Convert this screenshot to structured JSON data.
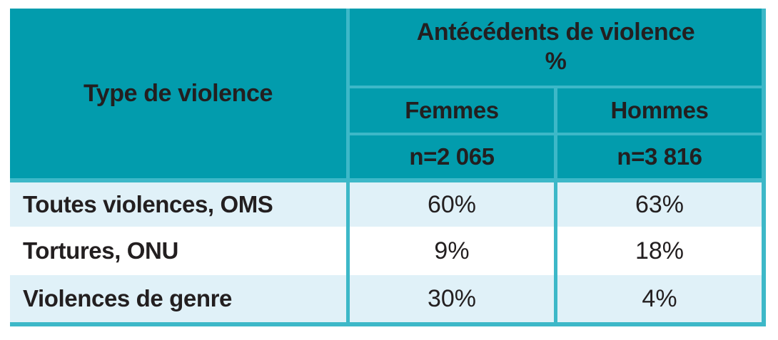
{
  "chart_data": {
    "type": "table",
    "header": {
      "row_label_column": "Type de violence",
      "span_label": "Antécédents de violence",
      "span_unit": "%",
      "groups": [
        {
          "label": "Femmes",
          "n_label": "n=2 065"
        },
        {
          "label": "Hommes",
          "n_label": "n=3 816"
        }
      ]
    },
    "rows": [
      {
        "label": "Toutes violences, OMS",
        "values": [
          "60%",
          "63%"
        ]
      },
      {
        "label": "Tortures, ONU",
        "values": [
          "9%",
          "18%"
        ]
      },
      {
        "label": "Violences de genre",
        "values": [
          "30%",
          "4%"
        ]
      }
    ],
    "values_numeric": {
      "femmes_pct": [
        60,
        9,
        30
      ],
      "hommes_pct": [
        63,
        18,
        4
      ],
      "n_femmes": 2065,
      "n_hommes": 3816
    },
    "layout": {
      "legend_position": "none",
      "grid": "table-dividers"
    }
  },
  "colors": {
    "header_teal": "#029cad",
    "divider_teal": "#3db8c8",
    "row_alt_blue": "#e0f1f8",
    "row_white": "#ffffff",
    "text_dark": "#231f20",
    "page_background": "#ffffff"
  }
}
